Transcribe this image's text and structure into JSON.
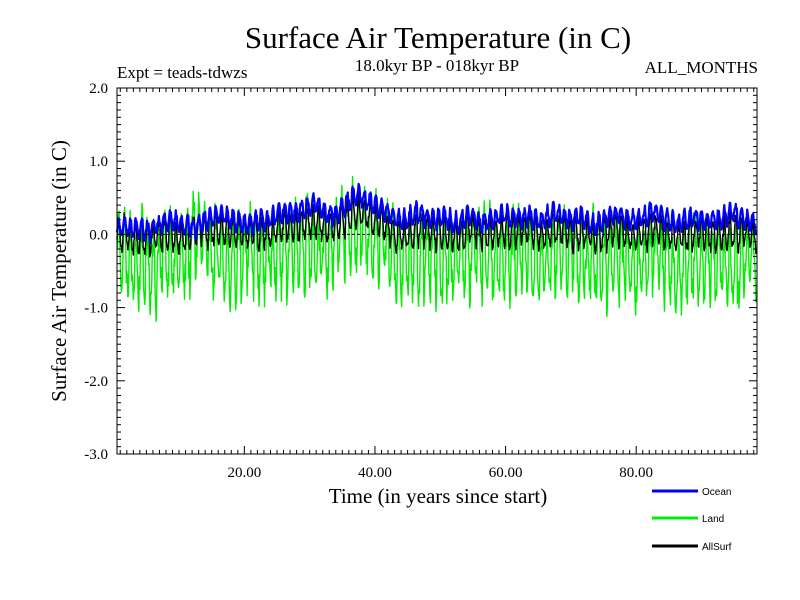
{
  "chart_data": {
    "type": "line",
    "title": "Surface Air Temperature (in C)",
    "subtitle_left": "Expt = teads-tdwzs",
    "subtitle_center": "18.0kyr BP - 018kyr BP",
    "subtitle_right": "ALL_MONTHS",
    "xlabel": "Time (in years since start)",
    "ylabel": "Surface Air Temperature (in C)",
    "xlim": [
      0.5,
      98.5
    ],
    "ylim": [
      -3.0,
      2.0
    ],
    "x_ticks": [
      20,
      40,
      60,
      80
    ],
    "x_tick_labels": [
      "20.00",
      "40.00",
      "60.00",
      "80.00"
    ],
    "y_ticks": [
      2.0,
      1.0,
      0.0,
      -1.0,
      -2.0,
      -3.0
    ],
    "y_tick_labels": [
      "2.0",
      "1.0",
      "0.0",
      "-1.0",
      "-2.0",
      "-3.0"
    ],
    "zero_line": true,
    "samples_per_year": 12,
    "series": [
      {
        "name": "Ocean",
        "color": "#0000ff",
        "annual_mean": [
          0.05,
          0.1,
          0.12,
          0.1,
          0.05,
          0.05,
          0.1,
          0.15,
          0.2,
          0.18,
          0.15,
          0.12,
          0.1,
          0.15,
          0.2,
          0.25,
          0.3,
          0.25,
          0.2,
          0.15,
          0.1,
          0.15,
          0.2,
          0.2,
          0.25,
          0.3,
          0.28,
          0.25,
          0.3,
          0.35,
          0.45,
          0.4,
          0.3,
          0.25,
          0.3,
          0.4,
          0.5,
          0.55,
          0.5,
          0.45,
          0.35,
          0.3,
          0.25,
          0.2,
          0.2,
          0.25,
          0.3,
          0.25,
          0.2,
          0.2,
          0.25,
          0.2,
          0.15,
          0.2,
          0.25,
          0.2,
          0.15,
          0.2,
          0.25,
          0.3,
          0.25,
          0.2,
          0.2,
          0.25,
          0.2,
          0.2,
          0.25,
          0.3,
          0.25,
          0.2,
          0.2,
          0.25,
          0.2,
          0.15,
          0.15,
          0.2,
          0.25,
          0.25,
          0.2,
          0.2,
          0.2,
          0.25,
          0.3,
          0.25,
          0.2,
          0.2,
          0.15,
          0.2,
          0.25,
          0.2,
          0.15,
          0.2,
          0.2,
          0.25,
          0.3,
          0.25,
          0.2,
          0.15
        ],
        "seasonal_amplitude": 0.12,
        "noise": 0.05
      },
      {
        "name": "Land",
        "color": "#00ee00",
        "annual_mean": [
          -0.3,
          -0.2,
          -0.35,
          -0.4,
          -0.3,
          -0.5,
          -0.6,
          -0.3,
          -0.2,
          -0.3,
          -0.25,
          -0.2,
          0.0,
          -0.1,
          -0.3,
          -0.2,
          -0.3,
          -0.4,
          -0.35,
          -0.3,
          -0.2,
          -0.3,
          -0.35,
          -0.2,
          -0.15,
          -0.2,
          -0.25,
          -0.2,
          -0.15,
          -0.1,
          -0.1,
          -0.2,
          -0.25,
          -0.2,
          -0.1,
          0.0,
          0.1,
          0.2,
          0.15,
          0.05,
          -0.1,
          -0.2,
          -0.3,
          -0.35,
          -0.3,
          -0.25,
          -0.3,
          -0.35,
          -0.4,
          -0.35,
          -0.3,
          -0.25,
          -0.2,
          -0.25,
          -0.3,
          -0.35,
          -0.3,
          -0.25,
          -0.2,
          -0.25,
          -0.3,
          -0.35,
          -0.3,
          -0.25,
          -0.3,
          -0.35,
          -0.3,
          -0.2,
          -0.25,
          -0.3,
          -0.35,
          -0.3,
          -0.25,
          -0.3,
          -0.35,
          -0.4,
          -0.35,
          -0.3,
          -0.3,
          -0.35,
          -0.4,
          -0.35,
          -0.3,
          -0.3,
          -0.4,
          -0.45,
          -0.4,
          -0.35,
          -0.3,
          -0.4,
          -0.45,
          -0.35,
          -0.3,
          -0.3,
          -0.35,
          -0.4,
          -0.35,
          -0.3
        ],
        "seasonal_amplitude": 0.5,
        "noise": 0.25
      },
      {
        "name": "AllSurf",
        "color": "#000000",
        "annual_mean": [
          0.0,
          0.02,
          0.0,
          -0.02,
          -0.05,
          -0.08,
          -0.05,
          0.0,
          0.02,
          0.0,
          0.0,
          0.02,
          0.05,
          0.05,
          0.05,
          0.1,
          0.12,
          0.1,
          0.05,
          0.02,
          0.0,
          0.02,
          0.05,
          0.05,
          0.1,
          0.12,
          0.1,
          0.08,
          0.12,
          0.15,
          0.2,
          0.18,
          0.12,
          0.1,
          0.12,
          0.2,
          0.3,
          0.35,
          0.3,
          0.25,
          0.15,
          0.1,
          0.05,
          0.0,
          0.02,
          0.05,
          0.08,
          0.05,
          0.0,
          0.02,
          0.05,
          0.02,
          0.0,
          0.02,
          0.05,
          0.02,
          0.0,
          0.02,
          0.05,
          0.08,
          0.05,
          0.02,
          0.02,
          0.05,
          0.02,
          0.02,
          0.05,
          0.08,
          0.05,
          0.02,
          0.0,
          0.05,
          0.02,
          0.0,
          0.0,
          0.02,
          0.05,
          0.05,
          0.02,
          0.02,
          0.0,
          0.02,
          0.05,
          0.02,
          0.0,
          0.0,
          -0.02,
          0.0,
          0.02,
          0.0,
          -0.02,
          0.0,
          0.0,
          0.02,
          0.05,
          0.02,
          0.0,
          -0.02
        ],
        "seasonal_amplitude": 0.2,
        "noise": 0.08
      }
    ],
    "legend": [
      {
        "name": "Ocean",
        "color": "#0000ff"
      },
      {
        "name": "Land",
        "color": "#00ee00"
      },
      {
        "name": "AllSurf",
        "color": "#000000"
      }
    ],
    "legend_position": "bottom-right"
  }
}
